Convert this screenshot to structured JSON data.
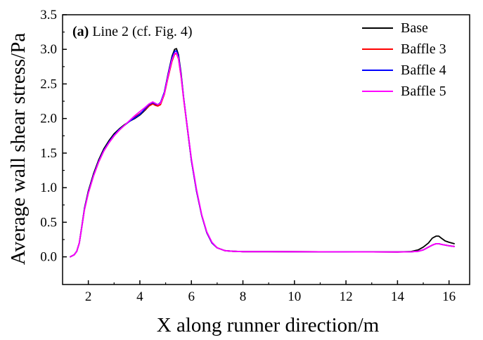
{
  "chart_data": {
    "type": "line",
    "annotation": {
      "bold": "(a)",
      "text": " Line 2 (cf. Fig. 4)"
    },
    "xlabel": "X along runner direction/m",
    "ylabel": "Average wall shear stress/Pa",
    "xlim": [
      1.0,
      16.8
    ],
    "ylim": [
      -0.4,
      3.5
    ],
    "xticks": [
      2,
      4,
      6,
      8,
      10,
      12,
      14,
      16
    ],
    "yticks": [
      0.0,
      0.5,
      1.0,
      1.5,
      2.0,
      2.5,
      3.0,
      3.5
    ],
    "ytick_labels": [
      "0.0",
      "0.5",
      "1.0",
      "1.5",
      "2.0",
      "2.5",
      "3.0",
      "3.5"
    ],
    "legend_position": "top-right",
    "grid": false,
    "series": [
      {
        "name": "Base",
        "color": "#000000",
        "x": [
          1.3,
          1.45,
          1.55,
          1.65,
          1.75,
          1.85,
          2.0,
          2.2,
          2.4,
          2.6,
          2.8,
          3.0,
          3.2,
          3.4,
          3.6,
          3.8,
          4.0,
          4.2,
          4.35,
          4.5,
          4.6,
          4.7,
          4.8,
          4.95,
          5.1,
          5.25,
          5.35,
          5.42,
          5.5,
          5.6,
          5.7,
          5.85,
          6.0,
          6.2,
          6.4,
          6.6,
          6.8,
          7.0,
          7.3,
          7.6,
          8.0,
          9.0,
          10.0,
          11.0,
          12.0,
          13.0,
          14.0,
          14.5,
          14.8,
          15.0,
          15.2,
          15.35,
          15.5,
          15.6,
          15.7,
          15.85,
          16.0,
          16.2
        ],
        "y": [
          0.0,
          0.03,
          0.08,
          0.2,
          0.45,
          0.7,
          0.95,
          1.2,
          1.4,
          1.56,
          1.68,
          1.78,
          1.85,
          1.91,
          1.96,
          2.0,
          2.05,
          2.12,
          2.18,
          2.22,
          2.2,
          2.19,
          2.22,
          2.38,
          2.65,
          2.9,
          3.0,
          3.01,
          2.92,
          2.65,
          2.3,
          1.85,
          1.4,
          0.95,
          0.6,
          0.35,
          0.2,
          0.13,
          0.09,
          0.08,
          0.075,
          0.075,
          0.074,
          0.073,
          0.072,
          0.071,
          0.07,
          0.075,
          0.1,
          0.14,
          0.2,
          0.27,
          0.3,
          0.3,
          0.27,
          0.23,
          0.21,
          0.19
        ]
      },
      {
        "name": "Baffle 3",
        "color": "#ff0000",
        "x": [
          1.3,
          1.45,
          1.55,
          1.65,
          1.75,
          1.85,
          2.0,
          2.2,
          2.4,
          2.6,
          2.8,
          3.0,
          3.2,
          3.4,
          3.6,
          3.8,
          4.0,
          4.2,
          4.35,
          4.5,
          4.6,
          4.7,
          4.8,
          4.95,
          5.1,
          5.25,
          5.35,
          5.42,
          5.5,
          5.6,
          5.7,
          5.85,
          6.0,
          6.2,
          6.4,
          6.6,
          6.8,
          7.0,
          7.3,
          7.6,
          8.0,
          9.0,
          10.0,
          11.0,
          12.0,
          13.0,
          14.0,
          14.5,
          14.8,
          15.0,
          15.2,
          15.35,
          15.5,
          15.6,
          15.7,
          15.85,
          16.0,
          16.2
        ],
        "y": [
          0.0,
          0.03,
          0.08,
          0.2,
          0.44,
          0.68,
          0.92,
          1.17,
          1.37,
          1.53,
          1.65,
          1.75,
          1.83,
          1.9,
          1.96,
          2.02,
          2.07,
          2.13,
          2.18,
          2.21,
          2.19,
          2.18,
          2.2,
          2.35,
          2.6,
          2.83,
          2.93,
          2.94,
          2.86,
          2.6,
          2.28,
          1.84,
          1.4,
          0.95,
          0.6,
          0.35,
          0.2,
          0.13,
          0.09,
          0.08,
          0.075,
          0.075,
          0.074,
          0.073,
          0.072,
          0.071,
          0.07,
          0.072,
          0.08,
          0.1,
          0.14,
          0.17,
          0.19,
          0.19,
          0.18,
          0.17,
          0.16,
          0.15
        ]
      },
      {
        "name": "Baffle 4",
        "color": "#0000ff",
        "x": [
          1.3,
          1.45,
          1.55,
          1.65,
          1.75,
          1.85,
          2.0,
          2.2,
          2.4,
          2.6,
          2.8,
          3.0,
          3.2,
          3.4,
          3.6,
          3.8,
          4.0,
          4.2,
          4.35,
          4.5,
          4.6,
          4.7,
          4.8,
          4.95,
          5.1,
          5.25,
          5.35,
          5.42,
          5.5,
          5.6,
          5.7,
          5.85,
          6.0,
          6.2,
          6.4,
          6.6,
          6.8,
          7.0,
          7.3,
          7.6,
          8.0,
          9.0,
          10.0,
          11.0,
          12.0,
          13.0,
          14.0,
          14.5,
          14.8,
          15.0,
          15.2,
          15.35,
          15.5,
          15.6,
          15.7,
          15.85,
          16.0,
          16.2
        ],
        "y": [
          0.0,
          0.03,
          0.08,
          0.2,
          0.44,
          0.69,
          0.93,
          1.18,
          1.38,
          1.54,
          1.66,
          1.76,
          1.84,
          1.9,
          1.96,
          2.01,
          2.06,
          2.14,
          2.2,
          2.23,
          2.21,
          2.2,
          2.23,
          2.38,
          2.64,
          2.88,
          2.97,
          2.98,
          2.9,
          2.63,
          2.3,
          1.85,
          1.4,
          0.95,
          0.6,
          0.35,
          0.2,
          0.13,
          0.09,
          0.08,
          0.075,
          0.075,
          0.074,
          0.073,
          0.072,
          0.071,
          0.07,
          0.072,
          0.08,
          0.1,
          0.14,
          0.17,
          0.19,
          0.19,
          0.18,
          0.17,
          0.16,
          0.15
        ]
      },
      {
        "name": "Baffle 5",
        "color": "#ff00ff",
        "x": [
          1.3,
          1.45,
          1.55,
          1.65,
          1.75,
          1.85,
          2.0,
          2.2,
          2.4,
          2.6,
          2.8,
          3.0,
          3.2,
          3.4,
          3.6,
          3.8,
          4.0,
          4.2,
          4.35,
          4.5,
          4.6,
          4.7,
          4.8,
          4.95,
          5.1,
          5.25,
          5.35,
          5.42,
          5.5,
          5.6,
          5.7,
          5.85,
          6.0,
          6.2,
          6.4,
          6.6,
          6.8,
          7.0,
          7.3,
          7.6,
          8.0,
          9.0,
          10.0,
          11.0,
          12.0,
          13.0,
          14.0,
          14.5,
          14.8,
          15.0,
          15.2,
          15.35,
          15.5,
          15.6,
          15.7,
          15.85,
          16.0,
          16.2
        ],
        "y": [
          0.0,
          0.03,
          0.08,
          0.2,
          0.44,
          0.68,
          0.92,
          1.17,
          1.37,
          1.53,
          1.65,
          1.75,
          1.83,
          1.9,
          1.97,
          2.04,
          2.1,
          2.16,
          2.21,
          2.24,
          2.22,
          2.2,
          2.22,
          2.36,
          2.62,
          2.85,
          2.94,
          2.95,
          2.87,
          2.61,
          2.29,
          1.86,
          1.42,
          0.97,
          0.61,
          0.36,
          0.21,
          0.13,
          0.09,
          0.08,
          0.075,
          0.075,
          0.074,
          0.073,
          0.072,
          0.071,
          0.07,
          0.072,
          0.08,
          0.1,
          0.14,
          0.17,
          0.19,
          0.19,
          0.18,
          0.17,
          0.16,
          0.15
        ]
      }
    ]
  }
}
